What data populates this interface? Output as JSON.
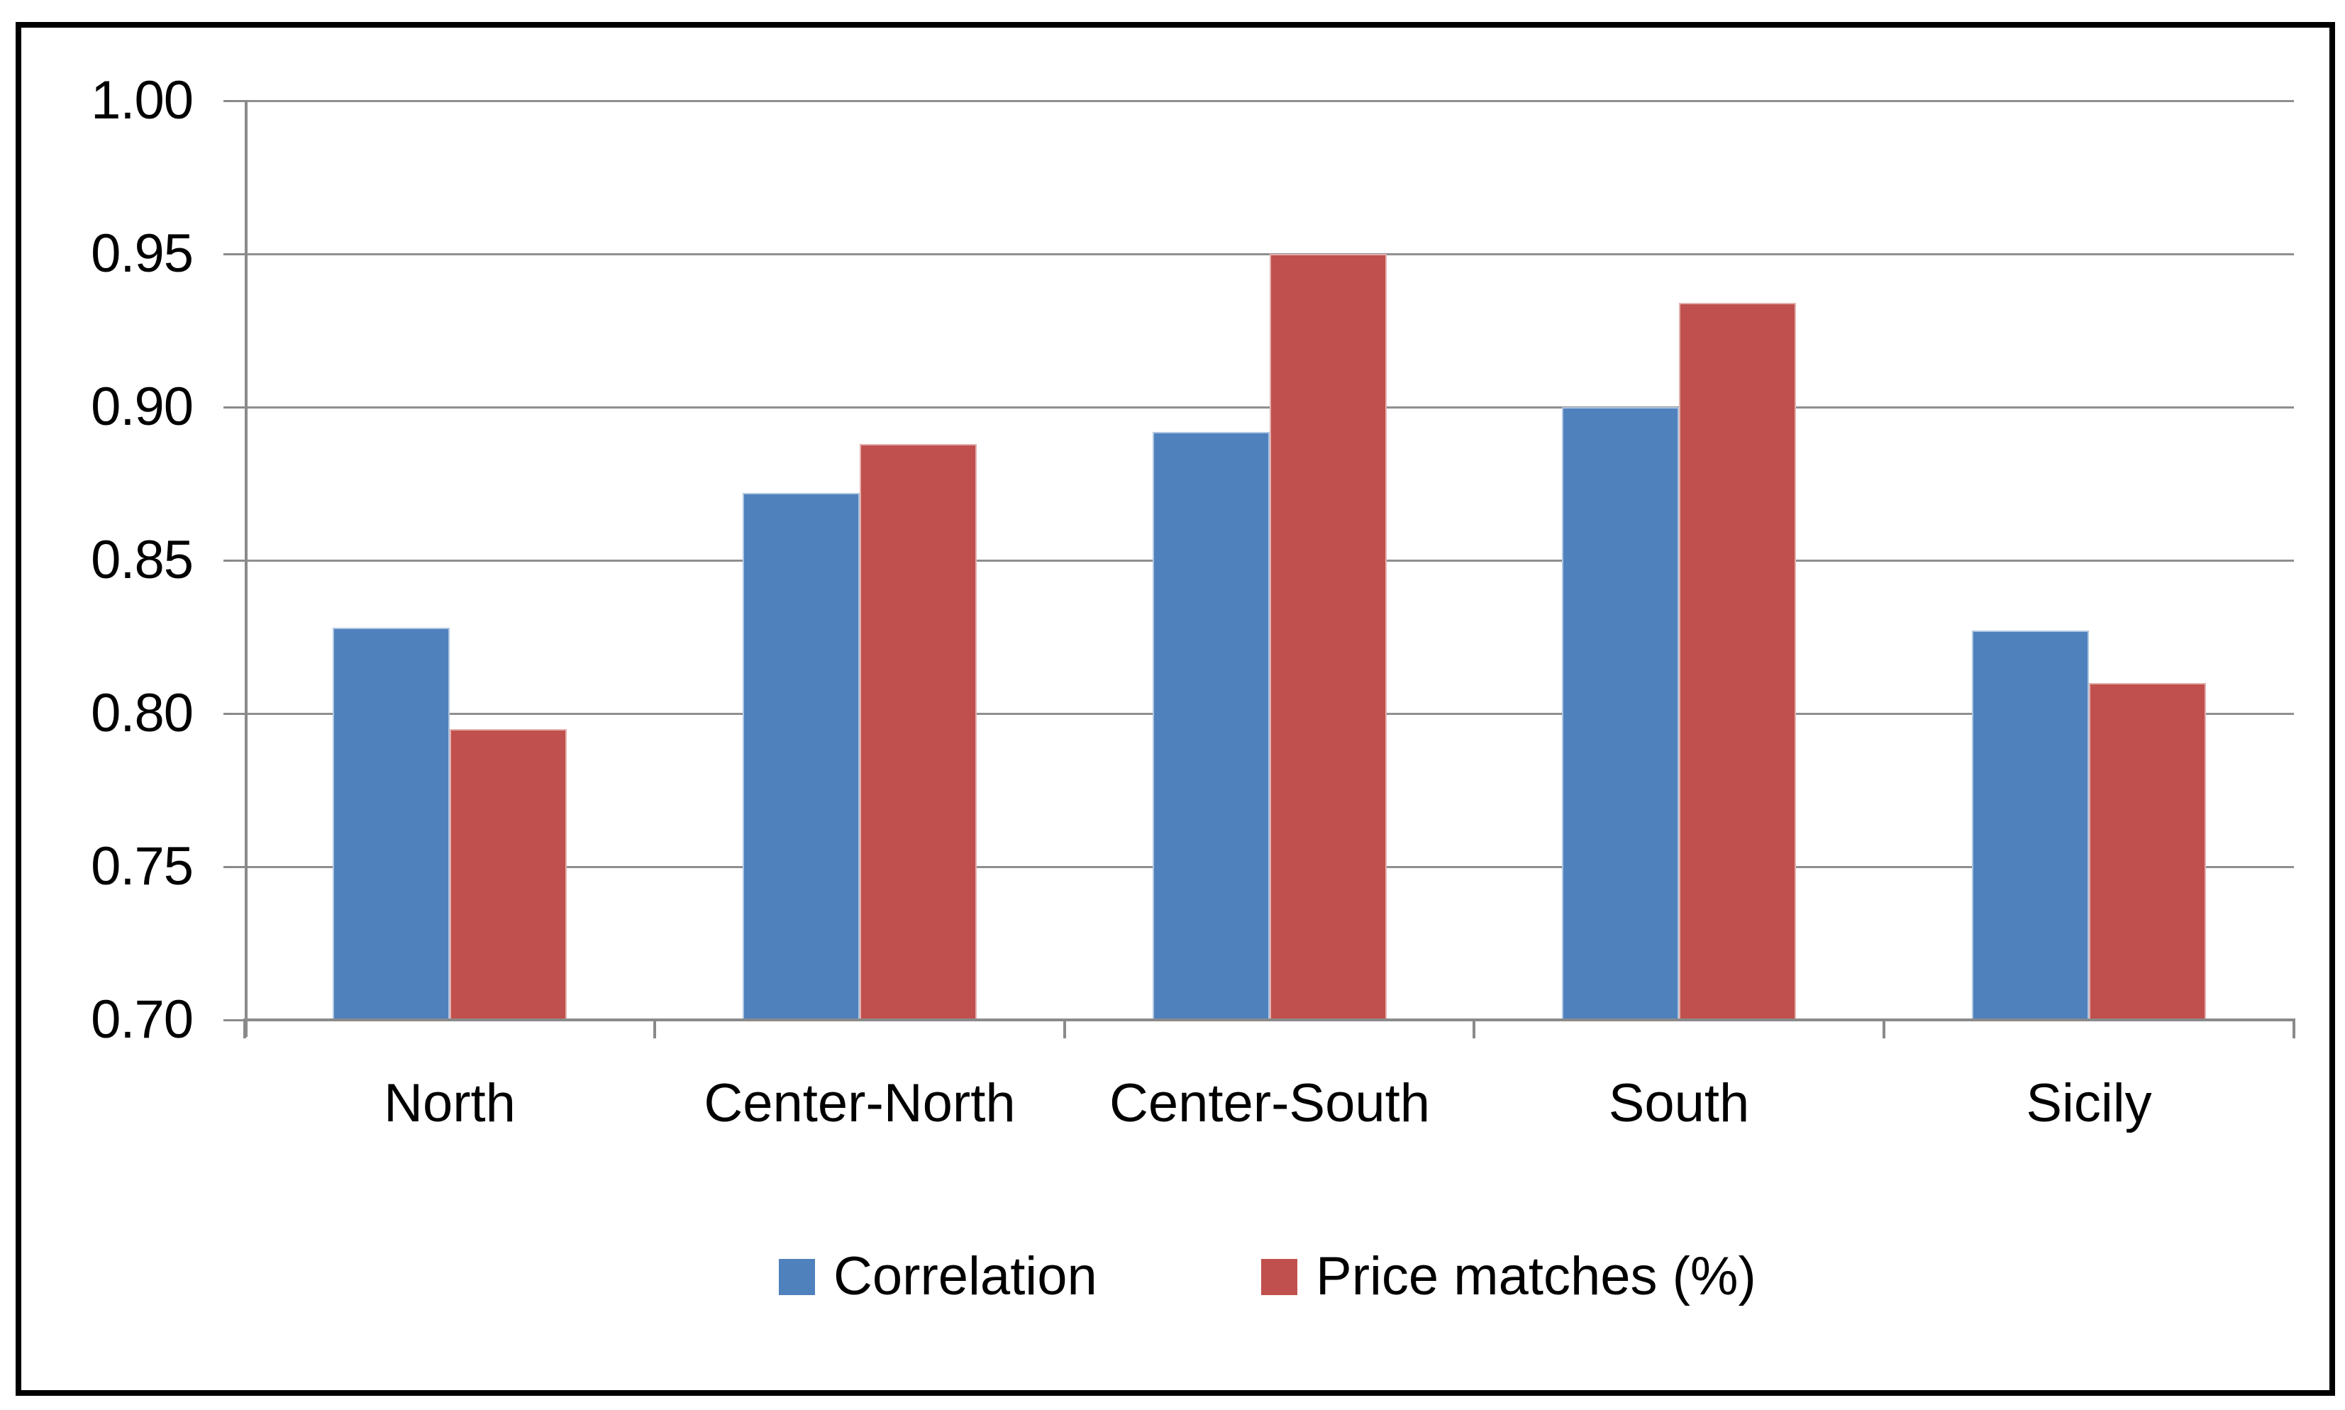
{
  "chart_data": {
    "type": "bar",
    "title": "",
    "categories": [
      "North",
      "Center-North",
      "Center-South",
      "South",
      "Sicily"
    ],
    "series": [
      {
        "name": "Correlation",
        "color": "#4F81BD",
        "values": [
          0.828,
          0.872,
          0.892,
          0.9,
          0.827
        ]
      },
      {
        "name": "Price matches (%)",
        "color": "#C0504D",
        "values": [
          0.795,
          0.888,
          0.95,
          0.934,
          0.81
        ]
      }
    ],
    "ylim": [
      0.7,
      1.0
    ],
    "ytick_step": 0.05,
    "ytick_labels": [
      "1.00",
      "0.95",
      "0.90",
      "0.85",
      "0.80",
      "0.75",
      "0.70"
    ],
    "grid": true,
    "legend_position": "bottom-center",
    "colors": {
      "gridline": "#8F8F8F",
      "axis": "#8A8A8A",
      "frame": "#000000",
      "text": "#000000",
      "background": "#FFFFFF"
    }
  }
}
